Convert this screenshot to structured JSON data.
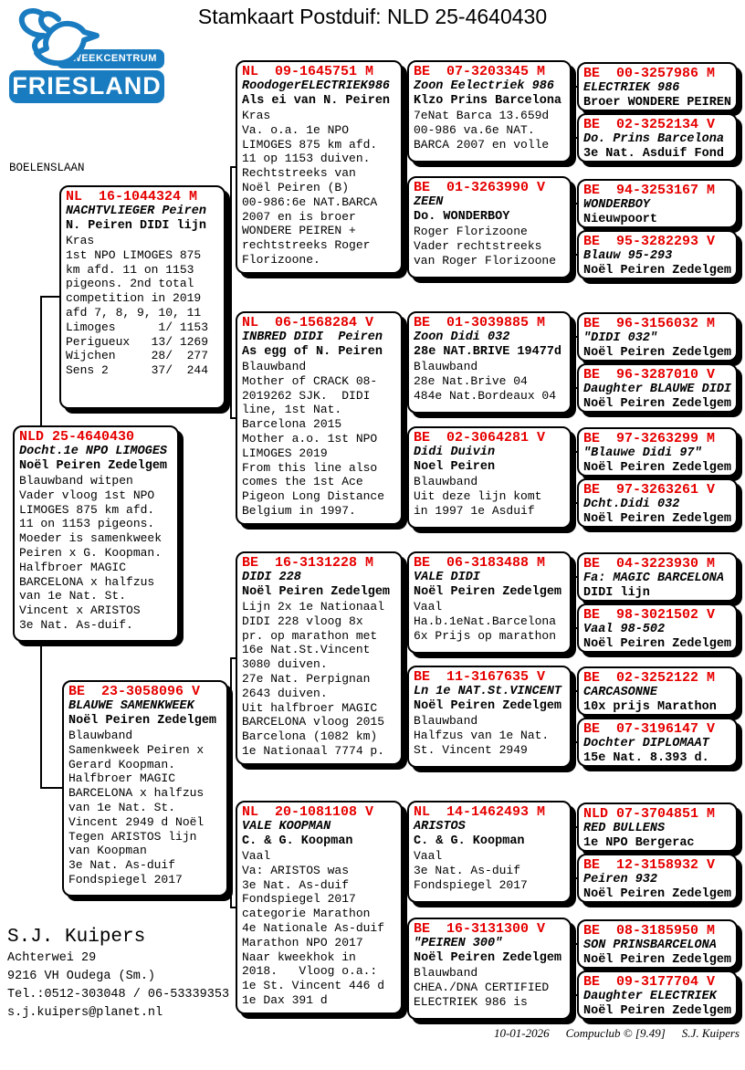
{
  "title": "Stamkaart Postduif: NLD 25-4640430",
  "logo": {
    "line1": "KWEEKCENTRUM",
    "line2": "FRIESLAND"
  },
  "location_label": "BOELENSLAAN",
  "breeder": {
    "name": "S.J. Kuipers",
    "lines": [
      "Achterwei 29",
      "9216 VH  Oudega (Sm.)",
      "Tel.:0512-303048 / 06-53339353",
      "s.j.kuipers@planet.nl"
    ]
  },
  "footer": {
    "date": "10-01-2026",
    "program": "Compuclub © [9.49]",
    "author": "S.J. Kuipers"
  },
  "colors": {
    "ring_red": "#e60000",
    "logo_blue": "#1a7cc0"
  },
  "pedigree": {
    "boxes": [
      {
        "generation": "father",
        "ring": "NL  16-1044324 M",
        "name": "NACHTVLIEGER Peiren",
        "owner": "N. Peiren DIDI lijn",
        "notes": [
          "Kras",
          "1st NPO LIMOGES 875",
          "km afd. 11 on 1153",
          "pigeons. 2nd total",
          "competition in 2019",
          "afd 7, 8, 9, 10, 11",
          "Limoges      1/ 1153",
          "Perigueux   13/ 1269",
          "Wijchen     28/  277",
          "Sens 2      37/  244"
        ]
      },
      {
        "generation": "subject",
        "ring": "NLD 25-4640430",
        "name": "Docht.1e NPO LIMOGES",
        "owner": "Noël Peiren Zedelgem",
        "notes": [
          "Blauwband witpen",
          "Vader vloog 1st NPO",
          "LIMOGES 875 km afd.",
          "11 on 1153 pigeons.",
          "Moeder is samenkweek",
          "Peiren x G. Koopman.",
          "Halfbroer MAGIC",
          "BARCELONA x halfzus",
          "van 1e Nat. St.",
          "Vincent x ARISTOS",
          "3e Nat. As-duif."
        ]
      },
      {
        "generation": "mother",
        "ring": "BE  23-3058096 V",
        "name": "BLAUWE SAMENKWEEK",
        "owner": "Noël Peiren Zedelgem",
        "notes": [
          "Blauwband",
          "Samenkweek Peiren x",
          "Gerard Koopman.",
          "Halfbroer MAGIC",
          "BARCELONA x halfzus",
          "van 1e Nat. St.",
          "Vincent 2949 d Noël",
          "Tegen ARISTOS lijn",
          "van Koopman",
          "3e Nat. As-duif",
          "Fondspiegel 2017"
        ]
      },
      {
        "generation": "grandparent",
        "ring": "NL  09-1645751 M",
        "name": "RoodogerELECTRIEK986",
        "owner": "Als ei van N. Peiren",
        "notes": [
          "Kras",
          "Va. o.a. 1e NPO",
          "LIMOGES 875 km afd.",
          "11 op 1153 duiven.",
          "Rechtstreeks van",
          "Noël Peiren (B)",
          "00-986:6e NAT.BARCA",
          "2007 en is broer",
          "WONDERE PEIREN +",
          "rechtstreeks Roger",
          "Florizoone."
        ]
      },
      {
        "generation": "grandparent",
        "ring": "NL  06-1568284 V",
        "name": "INBRED DIDI  Peiren",
        "owner": "As egg of N. Peiren",
        "notes": [
          "Blauwband",
          "Mother of CRACK 08-",
          "2019262 SJK.  DIDI",
          "line, 1st Nat.",
          "Barcelona 2015",
          "Mother a.o. 1st NPO",
          "LIMOGES 2019",
          "From this line also",
          "comes the 1st Ace",
          "Pigeon Long Distance",
          "Belgium in 1997."
        ]
      },
      {
        "generation": "grandparent",
        "ring": "BE  16-3131228 M",
        "name": "DIDI 228",
        "owner": "Noël Peiren Zedelgem",
        "notes": [
          "Lijn 2x 1e Nationaal",
          "DIDI 228 vloog 8x",
          "pr. op marathon met",
          "16e Nat.St.Vincent",
          "3080 duiven.",
          "27e Nat. Perpignan",
          "2643 duiven.",
          "Uit halfbroer MAGIC",
          "BARCELONA vloog 2015",
          "Barcelona (1082 km)",
          "1e Nationaal 7774 p."
        ]
      },
      {
        "generation": "grandparent",
        "ring": "NL  20-1081108 V",
        "name": "VALE KOOPMAN",
        "owner": "C. & G. Koopman",
        "notes": [
          "Vaal",
          "Va: ARISTOS was",
          "3e Nat. As-duif",
          "Fondspiegel 2017",
          "categorie Marathon",
          "4e Nationale As-duif",
          "Marathon NPO 2017",
          "Naar kweekhok in",
          "2018.   Vloog o.a.:",
          "1e St. Vincent 446 d",
          "1e Dax 391 d"
        ]
      },
      {
        "generation": "great-grandparent",
        "ring": "BE  07-3203345 M",
        "name": "Zoon Eelectriek 986",
        "owner": "Klzo Prins Barcelona",
        "notes": [
          "7eNat Barca 13.659d",
          "00-986 va.6e NAT.",
          "BARCA 2007 en volle"
        ]
      },
      {
        "generation": "great-grandparent",
        "ring": "BE  01-3263990 V",
        "name": "ZEEN",
        "owner": "Do. WONDERBOY",
        "notes": [
          "Roger Florizoone",
          "Vader rechtstreeks",
          "van Roger Florizoone"
        ]
      },
      {
        "generation": "great-grandparent",
        "ring": "BE  01-3039885 M",
        "name": "Zoon Didi 032",
        "owner": "28e NAT.BRIVE 19477d",
        "notes": [
          "Blauwband",
          "28e Nat.Brive 04",
          "484e Nat.Bordeaux 04"
        ]
      },
      {
        "generation": "great-grandparent",
        "ring": "BE  02-3064281 V",
        "name": "Didi Duivin",
        "owner": "Noel Peiren",
        "notes": [
          "Blauwband",
          "Uit deze lijn komt",
          "in 1997 1e Asduif"
        ]
      },
      {
        "generation": "great-grandparent",
        "ring": "BE  06-3183488 M",
        "name": "VALE DIDI",
        "owner": "Noël Peiren Zedelgem",
        "notes": [
          "Vaal",
          "Ha.b.1eNat.Barcelona",
          "6x Prijs op marathon"
        ]
      },
      {
        "generation": "great-grandparent",
        "ring": "BE  11-3167635 V",
        "name": "Ln 1e NAT.St.VINCENT",
        "owner": "Noël Peiren Zedelgem",
        "notes": [
          "Blauwband",
          "Halfzus van 1e Nat.",
          "St. Vincent 2949"
        ]
      },
      {
        "generation": "great-grandparent",
        "ring": "NL  14-1462493 M",
        "name": "ARISTOS",
        "owner": "C. & G. Koopman",
        "notes": [
          "Vaal",
          "3e Nat. As-duif",
          "Fondspiegel 2017"
        ]
      },
      {
        "generation": "great-grandparent",
        "ring": "BE  16-3131300 V",
        "name": "\"PEIREN 300\"",
        "owner": "Noël Peiren Zedelgem",
        "notes": [
          "Blauwband",
          "CHEA./DNA CERTIFIED",
          "ELECTRIEK 986 is"
        ]
      },
      {
        "generation": "gg-grandparent",
        "ring": "BE  00-3257986 M",
        "name": "ELECTRIEK 986",
        "owner": "Broer WONDERE PEIREN",
        "notes": []
      },
      {
        "generation": "gg-grandparent",
        "ring": "BE  02-3252134 V",
        "name": "Do. Prins Barcelona",
        "owner": "3e Nat. Asduif Fond",
        "notes": []
      },
      {
        "generation": "gg-grandparent",
        "ring": "BE  94-3253167 M",
        "name": "WONDERBOY",
        "owner": "Nieuwpoort",
        "notes": []
      },
      {
        "generation": "gg-grandparent",
        "ring": "BE  95-3282293 V",
        "name": "Blauw 95-293",
        "owner": "Noël Peiren Zedelgem",
        "notes": []
      },
      {
        "generation": "gg-grandparent",
        "ring": "BE  96-3156032 M",
        "name": "\"DIDI 032\"",
        "owner": "Noël Peiren Zedelgem",
        "notes": []
      },
      {
        "generation": "gg-grandparent",
        "ring": "BE  96-3287010 V",
        "name": "Daughter BLAUWE DIDI",
        "owner": "Noël Peiren Zedelgem",
        "notes": []
      },
      {
        "generation": "gg-grandparent",
        "ring": "BE  97-3263299 M",
        "name": "\"Blauwe Didi 97\"",
        "owner": "Noël Peiren Zedelgem",
        "notes": []
      },
      {
        "generation": "gg-grandparent",
        "ring": "BE  97-3263261 V",
        "name": "Dcht.Didi 032",
        "owner": "Noël Peiren Zedelgem",
        "notes": []
      },
      {
        "generation": "gg-grandparent",
        "ring": "BE  04-3223930 M",
        "name": "Fa: MAGIC BARCELONA",
        "owner": "DIDI lijn",
        "notes": []
      },
      {
        "generation": "gg-grandparent",
        "ring": "BE  98-3021502 V",
        "name": "Vaal 98-502",
        "owner": "Noël Peiren Zedelgem",
        "notes": []
      },
      {
        "generation": "gg-grandparent",
        "ring": "BE  02-3252122 M",
        "name": "CARCASONNE",
        "owner": "10x prijs Marathon",
        "notes": []
      },
      {
        "generation": "gg-grandparent",
        "ring": "BE  07-3196147 V",
        "name": "Dochter DIPLOMAAT",
        "owner": "15e Nat. 8.393 d.",
        "notes": []
      },
      {
        "generation": "gg-grandparent",
        "ring": "NLD 07-3704851 M",
        "name": "RED BULLENS",
        "owner": "1e NPO Bergerac",
        "notes": []
      },
      {
        "generation": "gg-grandparent",
        "ring": "BE  12-3158932 V",
        "name": "Peiren 932",
        "owner": "Noël Peiren Zedelgem",
        "notes": []
      },
      {
        "generation": "gg-grandparent",
        "ring": "BE  08-3185950 M",
        "name": "SON PRINSBARCELONA",
        "owner": "Noël Peiren Zedelgem",
        "notes": []
      },
      {
        "generation": "gg-grandparent",
        "ring": "BE  09-3177704 V",
        "name": "Daughter ELECTRIEK",
        "owner": "Noël Peiren Zedelgem",
        "notes": []
      }
    ]
  }
}
